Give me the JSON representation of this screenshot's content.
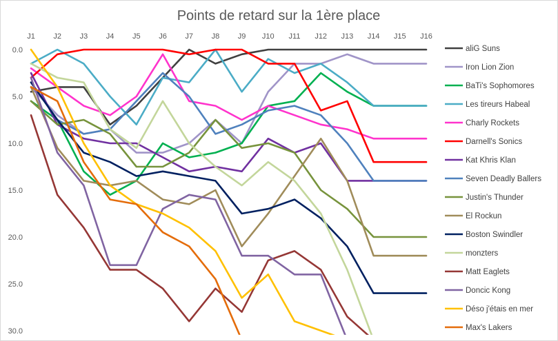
{
  "chart_data": {
    "type": "line",
    "title": "Points de retard sur la 1ère place",
    "x": [
      "J1",
      "J2",
      "J3",
      "J4",
      "J5",
      "J6",
      "J7",
      "J8",
      "J9",
      "J10",
      "J11",
      "J12",
      "J13",
      "J14",
      "J15",
      "J16"
    ],
    "x_axis_position": "top",
    "y_inverted": true,
    "ylim": [
      0,
      30
    ],
    "y_ticks": [
      "0.0",
      "5.0",
      "10.0",
      "15.0",
      "20.0",
      "25.0",
      "30.0"
    ],
    "grid": false,
    "legend_position": "right",
    "series": [
      {
        "name": "aliG Suns",
        "color": "#404040",
        "values": [
          4.5,
          4.0,
          4.0,
          8.0,
          6.0,
          3.0,
          0.0,
          1.5,
          0.5,
          0.0,
          0.0,
          0.0,
          0.0,
          0.0,
          0.0,
          0.0
        ]
      },
      {
        "name": "Iron Lion Zion",
        "color": "#a094c8",
        "values": [
          4.0,
          7.0,
          9.0,
          8.5,
          11.0,
          11.0,
          10.0,
          7.5,
          10.0,
          4.5,
          1.5,
          1.5,
          0.5,
          1.5,
          1.5,
          1.5
        ]
      },
      {
        "name": "BaTi's Sophomores",
        "color": "#00b050",
        "values": [
          5.5,
          7.5,
          13.0,
          15.5,
          14.0,
          10.0,
          11.5,
          11.0,
          10.0,
          6.0,
          5.5,
          2.5,
          4.5,
          6.0,
          6.0,
          6.0
        ]
      },
      {
        "name": "Les tireurs Habeal",
        "color": "#4bacc6",
        "values": [
          1.5,
          0.0,
          1.5,
          5.0,
          8.0,
          3.0,
          3.5,
          0.0,
          4.5,
          1.0,
          2.5,
          1.5,
          3.5,
          6.0,
          6.0,
          6.0
        ]
      },
      {
        "name": "Charly Rockets",
        "color": "#ff33cc",
        "values": [
          2.0,
          4.0,
          6.0,
          7.0,
          5.0,
          0.5,
          5.5,
          6.0,
          7.5,
          6.0,
          7.0,
          8.0,
          8.5,
          9.5,
          9.5,
          9.5
        ]
      },
      {
        "name": "Darnell's Sonics",
        "color": "#ff0000",
        "values": [
          3.0,
          0.5,
          0.0,
          0.0,
          0.0,
          0.0,
          0.5,
          0.0,
          0.0,
          1.5,
          1.5,
          6.5,
          5.5,
          12.0,
          12.0,
          12.0
        ]
      },
      {
        "name": "Kat Khris Klan",
        "color": "#7030a0",
        "values": [
          2.5,
          8.0,
          9.5,
          10.0,
          10.0,
          11.5,
          13.0,
          12.5,
          13.0,
          9.5,
          11.0,
          10.0,
          14.0,
          14.0,
          14.0,
          14.0
        ]
      },
      {
        "name": "Seven Deadly Ballers",
        "color": "#4f81bd",
        "values": [
          3.5,
          7.5,
          9.0,
          8.5,
          5.5,
          2.5,
          5.0,
          9.0,
          8.0,
          6.5,
          6.0,
          7.0,
          10.0,
          14.0,
          14.0,
          14.0
        ]
      },
      {
        "name": "Justin's Thunder",
        "color": "#77933c",
        "values": [
          5.5,
          8.0,
          7.5,
          9.0,
          12.5,
          12.5,
          11.0,
          7.5,
          10.5,
          10.0,
          11.0,
          15.0,
          17.0,
          20.0,
          20.0,
          20.0
        ]
      },
      {
        "name": "El Rockun",
        "color": "#a08c5a",
        "values": [
          4.0,
          10.5,
          14.0,
          14.5,
          14.0,
          16.0,
          16.5,
          15.0,
          21.0,
          17.5,
          13.5,
          9.5,
          14.0,
          22.0,
          22.0,
          22.0
        ]
      },
      {
        "name": "Boston Swindler",
        "color": "#002060",
        "values": [
          3.5,
          7.5,
          11.0,
          12.0,
          13.5,
          13.0,
          13.5,
          14.0,
          17.5,
          17.0,
          16.0,
          18.0,
          21.0,
          26.0,
          26.0,
          26.0
        ]
      },
      {
        "name": "monzters",
        "color": "#c3d69b",
        "values": [
          1.5,
          3.0,
          3.5,
          8.5,
          10.5,
          5.5,
          10.0,
          12.5,
          14.5,
          12.0,
          14.0,
          17.5,
          23.5,
          31.0,
          null,
          null
        ]
      },
      {
        "name": "Matt Eaglets",
        "color": "#953735",
        "values": [
          7.0,
          15.5,
          19.0,
          23.5,
          23.5,
          25.5,
          29.0,
          25.5,
          28.0,
          22.5,
          21.5,
          23.5,
          28.5,
          31.0,
          null,
          null
        ]
      },
      {
        "name": "Doncic Kong",
        "color": "#8064a2",
        "values": [
          3.0,
          11.0,
          14.5,
          23.0,
          23.0,
          17.0,
          15.5,
          16.0,
          22.0,
          22.0,
          24.0,
          24.0,
          31.0,
          null,
          null,
          null
        ]
      },
      {
        "name": "Déso j'étais en mer",
        "color": "#ffc000",
        "values": [
          0.0,
          4.0,
          10.0,
          14.5,
          16.5,
          17.5,
          19.0,
          21.5,
          26.5,
          24.0,
          29.0,
          30.0,
          31.0,
          null,
          null,
          null
        ]
      },
      {
        "name": "Max's Lakers",
        "color": "#e46c0a",
        "values": [
          4.0,
          5.5,
          12.0,
          16.0,
          16.5,
          19.5,
          21.0,
          24.5,
          31.0,
          null,
          null,
          null,
          null,
          null,
          null,
          null
        ]
      }
    ]
  }
}
